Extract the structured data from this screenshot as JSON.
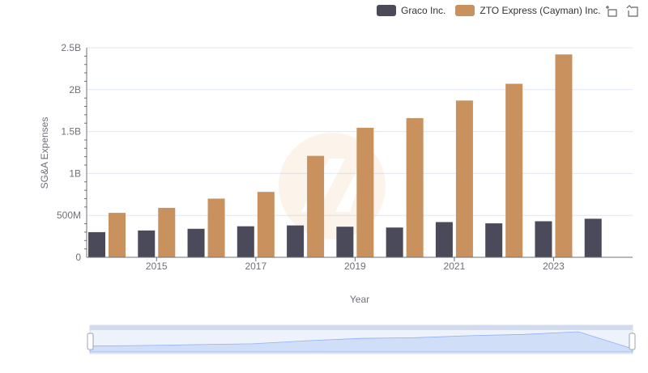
{
  "legend": {
    "items": [
      {
        "label": "Graco Inc.",
        "color": "#4a4a5a"
      },
      {
        "label": "ZTO Express (Cayman) Inc.",
        "color": "#c8915e"
      }
    ]
  },
  "toolbar": {
    "icons": [
      "zoom-select-icon",
      "zoom-reset-icon"
    ]
  },
  "chart_data": {
    "type": "bar",
    "xlabel": "Year",
    "ylabel": "SG&A Expenses",
    "ylim": [
      0,
      2500000000
    ],
    "y_ticks": [
      {
        "value": 0,
        "label": "0"
      },
      {
        "value": 500000000,
        "label": "500M"
      },
      {
        "value": 1000000000,
        "label": "1B"
      },
      {
        "value": 1500000000,
        "label": "1.5B"
      },
      {
        "value": 2000000000,
        "label": "2B"
      },
      {
        "value": 2500000000,
        "label": "2.5B"
      }
    ],
    "categories": [
      "2014",
      "2015",
      "2016",
      "2017",
      "2018",
      "2019",
      "2020",
      "2021",
      "2022",
      "2023",
      "2024"
    ],
    "x_tick_labels": [
      "",
      "2015",
      "",
      "2017",
      "",
      "2019",
      "",
      "2021",
      "",
      "2023",
      ""
    ],
    "series": [
      {
        "name": "Graco Inc.",
        "color": "#4a4a5a",
        "values": [
          300000000,
          320000000,
          340000000,
          370000000,
          380000000,
          365000000,
          355000000,
          420000000,
          405000000,
          430000000,
          460000000
        ]
      },
      {
        "name": "ZTO Express (Cayman) Inc.",
        "color": "#c8915e",
        "values": [
          530000000,
          590000000,
          700000000,
          780000000,
          1210000000,
          1545000000,
          1660000000,
          1870000000,
          2070000000,
          2420000000,
          null
        ]
      }
    ],
    "grid": true,
    "legend_position": "top-right"
  }
}
